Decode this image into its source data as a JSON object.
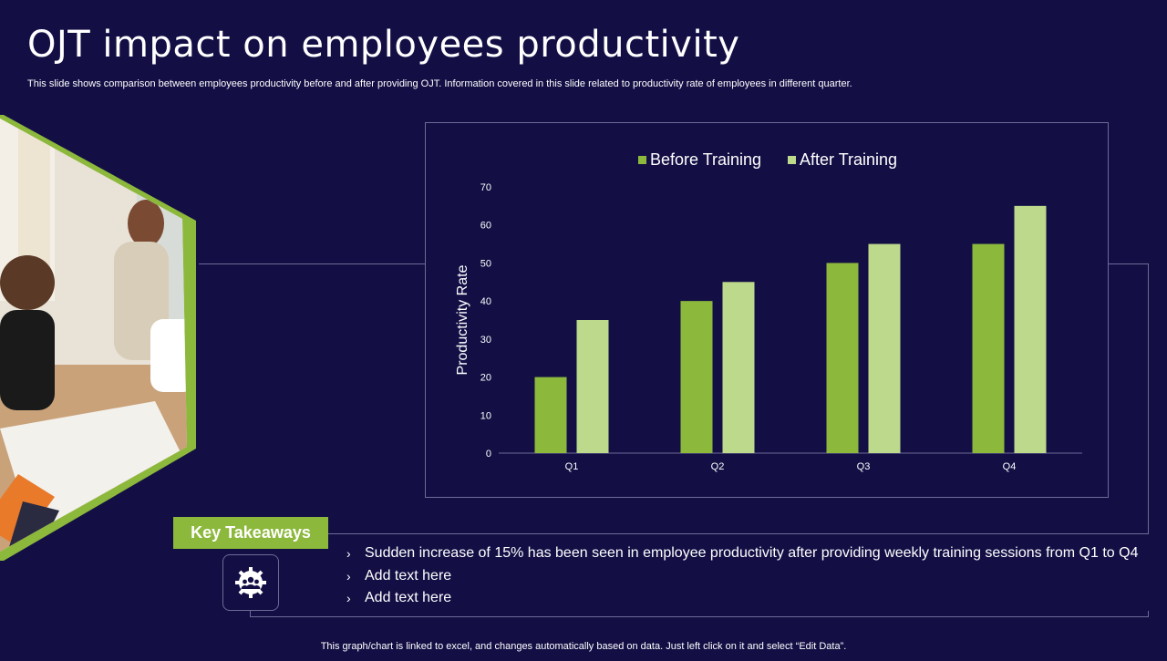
{
  "slide": {
    "title": "OJT impact on employees productivity",
    "subtitle": "This slide shows comparison between employees productivity before and after providing OJT. Information covered in this slide related to productivity rate of employees in different quarter.",
    "footer": "This graph/chart is linked to excel, and changes automatically based on data. Just left click on it and select “Edit Data”."
  },
  "colors": {
    "background": "#130f45",
    "accent_green": "#8cb83c",
    "light_green": "#bcd98c",
    "frame_gray": "#6e6a96"
  },
  "key_takeaways": {
    "label": "Key Takeaways",
    "icon": "team-gear-icon",
    "items": [
      "Sudden increase of 15% has been seen in employee productivity  after providing weekly training sessions from Q1 to Q4",
      "Add text here",
      "Add text here"
    ]
  },
  "chart_data": {
    "type": "bar",
    "categories": [
      "Q1",
      "Q2",
      "Q3",
      "Q4"
    ],
    "series": [
      {
        "name": "Before Training",
        "values": [
          20,
          40,
          50,
          55
        ],
        "color": "#8cb83c"
      },
      {
        "name": "After Training",
        "values": [
          35,
          45,
          55,
          65
        ],
        "color": "#bcd98c"
      }
    ],
    "title": "",
    "xlabel": "",
    "ylabel": "Productivity Rate",
    "ylim": [
      0,
      70
    ],
    "yticks": [
      0,
      10,
      20,
      30,
      40,
      50,
      60,
      70
    ],
    "legend": "top-center",
    "grid": false
  }
}
